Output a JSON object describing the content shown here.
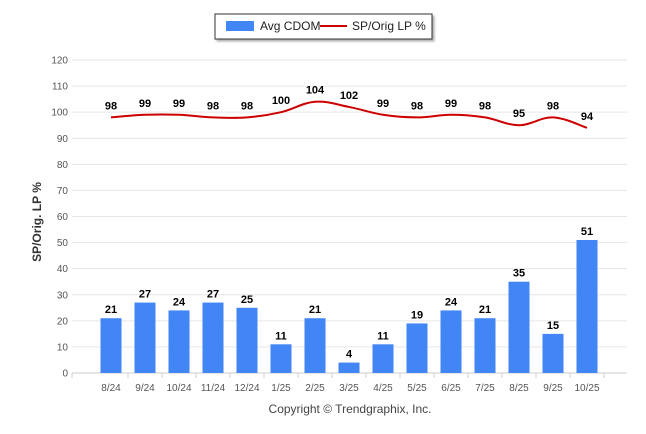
{
  "chart_data": {
    "type": "bar",
    "title": "",
    "xlabel": "",
    "ylabel": "SP/Orig. LP %",
    "ylim": [
      0,
      120
    ],
    "yticks": [
      0,
      10,
      20,
      30,
      40,
      50,
      60,
      70,
      80,
      90,
      100,
      110,
      120
    ],
    "categories": [
      "8/24",
      "9/24",
      "10/24",
      "11/24",
      "12/24",
      "1/25",
      "2/25",
      "3/25",
      "4/25",
      "5/25",
      "6/25",
      "7/25",
      "8/25",
      "9/25",
      "10/25"
    ],
    "series": [
      {
        "name": "Avg CDOM",
        "type": "bar",
        "color": "#4285f4",
        "values": [
          21,
          27,
          24,
          27,
          25,
          11,
          21,
          4,
          11,
          19,
          24,
          21,
          35,
          15,
          51
        ]
      },
      {
        "name": "SP/Orig LP %",
        "type": "line",
        "color": "#cc0000",
        "values": [
          98,
          99,
          99,
          98,
          98,
          100,
          104,
          102,
          99,
          98,
          99,
          98,
          95,
          98,
          94
        ]
      }
    ],
    "legend": "top-center",
    "grid": true
  },
  "footer": {
    "copyright": "Copyright © Trendgraphix, Inc."
  }
}
